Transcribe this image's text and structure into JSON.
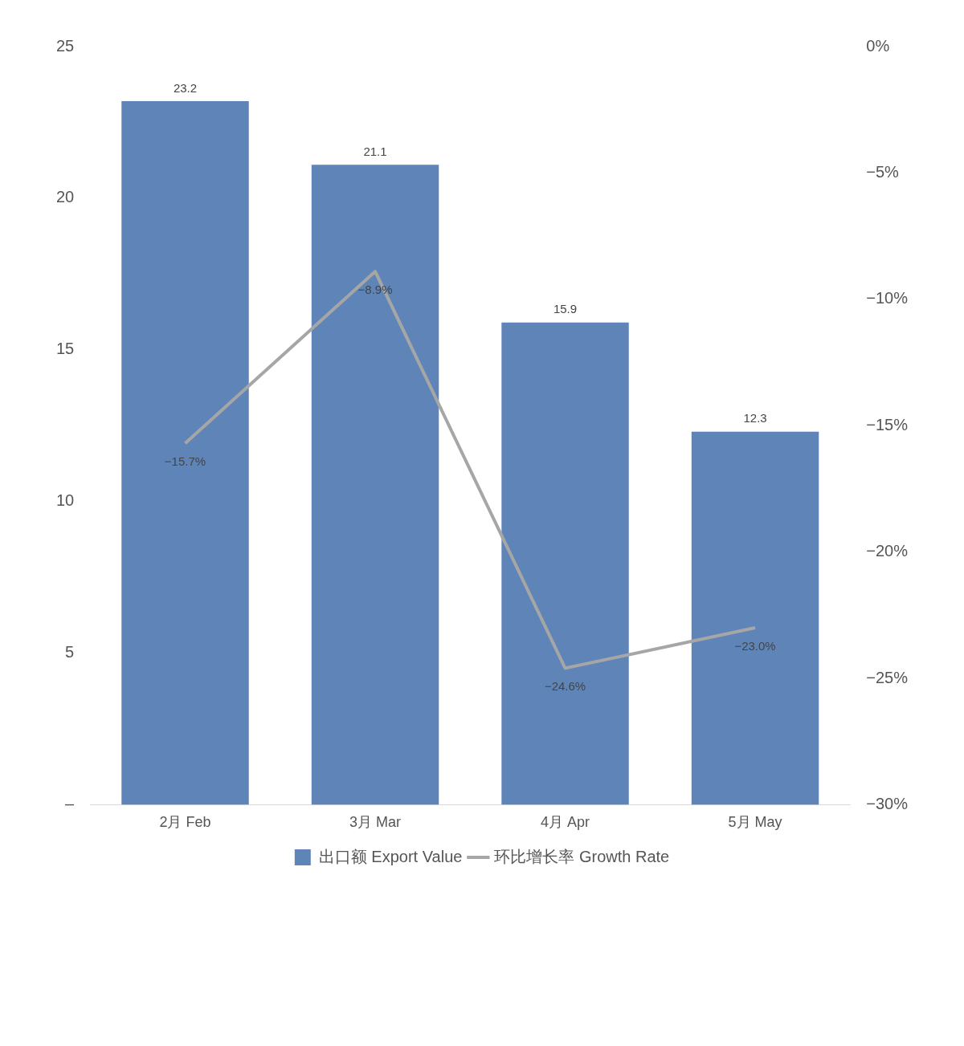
{
  "chart_data": {
    "type": "bar",
    "categories": [
      "2月 Feb",
      "3月 Mar",
      "4月 Apr",
      "5月 May"
    ],
    "series": [
      {
        "name": "出口额 Export Value",
        "color": "#5f85b8",
        "values": [
          23.2,
          21.1,
          15.9,
          12.3
        ],
        "value_labels": [
          "23.2",
          "21.1",
          "15.9",
          "12.3"
        ]
      },
      {
        "name": "环比增长率 Growth Rate",
        "type": "line",
        "axis": "y2",
        "color": "#a6a6a6",
        "values": [
          -15.7,
          -8.9,
          -24.6,
          -23.0
        ],
        "value_labels": [
          "−15.7%",
          "−8.9%",
          "−24.6%",
          "−23.0%"
        ]
      }
    ],
    "ylim": [
      0,
      25
    ],
    "yticks": [
      {
        "value": 0,
        "label": "–"
      },
      5,
      10,
      15,
      20,
      25
    ],
    "y2lim": [
      -30,
      0
    ],
    "y2ticks": [
      {
        "value": -30,
        "label": "−30%"
      },
      {
        "value": -25,
        "label": "−25%"
      },
      {
        "value": -20,
        "label": "−20%"
      },
      {
        "value": -15,
        "label": "−15%"
      },
      {
        "value": -10,
        "label": "−10%"
      },
      {
        "value": -5,
        "label": "−5%"
      },
      {
        "value": 0,
        "label": "0%"
      }
    ],
    "grid": false,
    "legend": "bottom",
    "marker": "none",
    "line_style": "solid"
  }
}
